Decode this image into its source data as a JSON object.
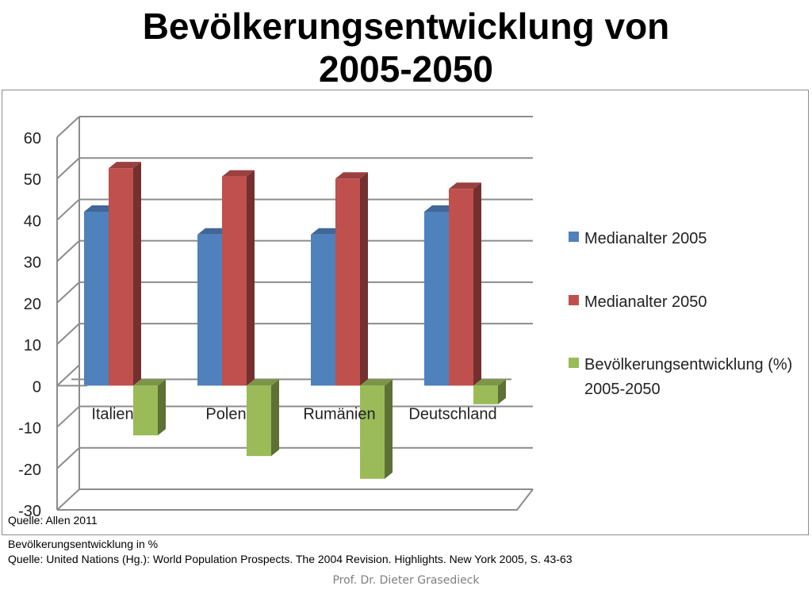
{
  "slide": {
    "title_line1": "Bevölkerungsentwicklung von",
    "title_line2": "2005-2050",
    "source_note": "Quelle: Allen 2011",
    "note2_line1": "Bevölkerungsentwicklung in %",
    "note2_line2": "Quelle: United Nations (Hg.): World Population Prospects. The 2004 Revision. Highlights. New York 2005, S. 43-63",
    "footer": "Prof. Dr. Dieter Grasedieck"
  },
  "chart_data": {
    "type": "bar",
    "categories": [
      "Italien",
      "Polen",
      "Rumänien",
      "Deutschland"
    ],
    "series": [
      {
        "name": "Medianalter 2005",
        "values": [
          42,
          36.5,
          36.5,
          42
        ],
        "color": "#4F81BD"
      },
      {
        "name": "Medianalter 2050",
        "values": [
          52.5,
          50.5,
          50,
          47.5
        ],
        "color": "#C0504D"
      },
      {
        "name": "Bevölkerungsentwicklung (%) 2005-2050",
        "values": [
          -12,
          -17,
          -22.5,
          -4.5
        ],
        "color": "#9BBB59"
      }
    ],
    "ylim": [
      -30,
      60
    ],
    "yticks": [
      "60",
      "50",
      "40",
      "30",
      "20",
      "10",
      "0",
      "-10",
      "-20",
      "-30"
    ],
    "grid": true,
    "legend_position": "right",
    "legend_labels": [
      "Medianalter 2005",
      "Medianalter 2050",
      "Bevölkerungsentwicklung (%)",
      "2005-2050"
    ]
  }
}
